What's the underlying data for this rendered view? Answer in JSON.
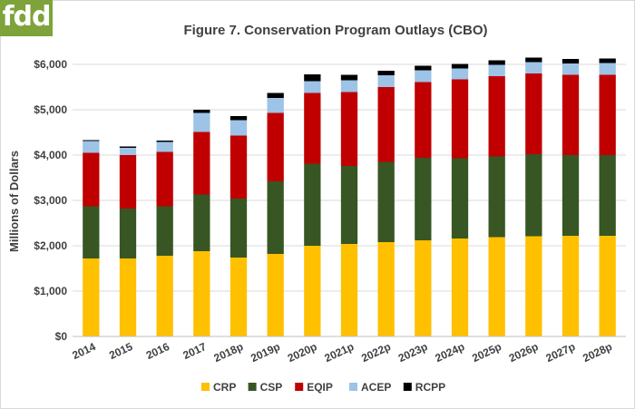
{
  "logo": {
    "text": "fdd",
    "color": "#7da33a"
  },
  "chart_data": {
    "type": "bar",
    "stacked": true,
    "title": "Figure 7. Conservation Program Outlays (CBO)",
    "xlabel": "",
    "ylabel": "Millions of Dollars",
    "ylim": [
      0,
      6000
    ],
    "yticks": [
      "$0",
      "$1,000",
      "$2,000",
      "$3,000",
      "$4,000",
      "$5,000",
      "$6,000"
    ],
    "grid": true,
    "legend_position": "bottom",
    "categories": [
      "2014",
      "2015",
      "2016",
      "2017",
      "2018p",
      "2019p",
      "2020p",
      "2021p",
      "2022p",
      "2023p",
      "2024p",
      "2025p",
      "2026p",
      "2027p",
      "2028p"
    ],
    "series": [
      {
        "name": "CRP",
        "color": "#ffc000",
        "values": [
          1720,
          1720,
          1780,
          1880,
          1740,
          1820,
          2000,
          2040,
          2080,
          2120,
          2160,
          2190,
          2210,
          2220,
          2220
        ]
      },
      {
        "name": "CSP",
        "color": "#375623",
        "values": [
          1150,
          1100,
          1090,
          1250,
          1300,
          1600,
          1810,
          1720,
          1770,
          1820,
          1770,
          1780,
          1810,
          1780,
          1780
        ]
      },
      {
        "name": "EQIP",
        "color": "#c00000",
        "values": [
          1180,
          1180,
          1200,
          1380,
          1390,
          1510,
          1560,
          1630,
          1650,
          1670,
          1740,
          1770,
          1780,
          1770,
          1770
        ]
      },
      {
        "name": "ACEP",
        "color": "#9dc3e6",
        "values": [
          260,
          160,
          220,
          420,
          340,
          330,
          260,
          260,
          260,
          260,
          240,
          250,
          250,
          250,
          260
        ]
      },
      {
        "name": "RCPP",
        "color": "#000000",
        "values": [
          20,
          30,
          30,
          70,
          90,
          110,
          150,
          120,
          100,
          100,
          100,
          100,
          100,
          100,
          100
        ]
      }
    ]
  }
}
